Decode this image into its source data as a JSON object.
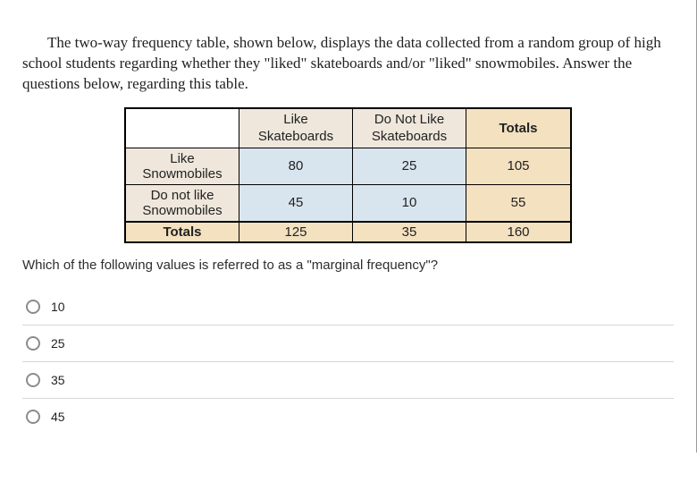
{
  "intro": "The two-way frequency table, shown below, displays the data collected from a random group of high school students regarding whether they \"liked\" skateboards and/or \"liked\" snowmobiles. Answer the questions below, regarding this table.",
  "table": {
    "col_headers": [
      {
        "line1": "Like",
        "line2": "Skateboards"
      },
      {
        "line1": "Do Not Like",
        "line2": "Skateboards"
      }
    ],
    "totals_label": "Totals",
    "row_headers": [
      {
        "line1": "Like",
        "line2": "Snowmobiles"
      },
      {
        "line1": "Do not like",
        "line2": "Snowmobiles"
      }
    ],
    "cells": [
      [
        80,
        25
      ],
      [
        45,
        10
      ]
    ],
    "row_totals": [
      105,
      55
    ],
    "col_totals": [
      125,
      35
    ],
    "grand_total": 160
  },
  "question": "Which of the following values is referred to as a \"marginal frequency\"?",
  "options": [
    "10",
    "25",
    "35",
    "45"
  ],
  "styling": {
    "header_bg": "#efe7dc",
    "totals_bg": "#f3e1c0",
    "inner_bg": "#d8e5ef",
    "border_color": "#000000",
    "radio_border": "#8c8c8c",
    "divider_color": "#d7d7d7",
    "intro_font": "serif",
    "body_font": "sans-serif"
  }
}
